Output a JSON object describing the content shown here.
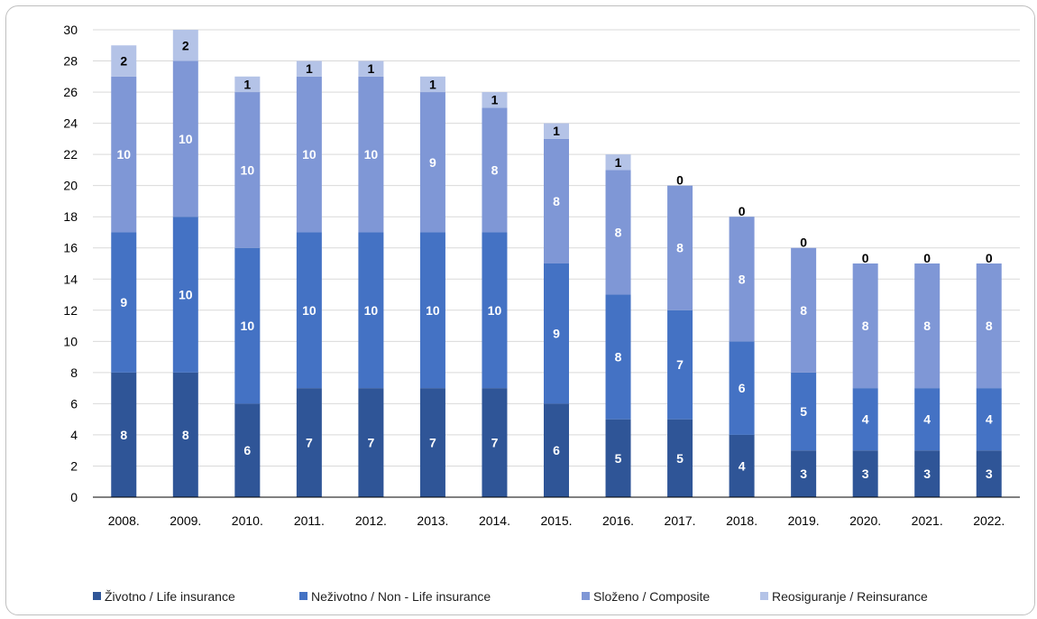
{
  "chart_data": {
    "type": "bar",
    "stacked": true,
    "categories": [
      "2008.",
      "2009.",
      "2010.",
      "2011.",
      "2012.",
      "2013.",
      "2014.",
      "2015.",
      "2016.",
      "2017.",
      "2018.",
      "2019.",
      "2020.",
      "2021.",
      "2022."
    ],
    "series": [
      {
        "name": "Životno / Life insurance",
        "color": "#2f5597",
        "label_color": "#ffffff",
        "values": [
          8,
          8,
          6,
          7,
          7,
          7,
          7,
          6,
          5,
          5,
          4,
          3,
          3,
          3,
          3
        ]
      },
      {
        "name": "Neživotno / Non - Life insurance",
        "color": "#4472c4",
        "label_color": "#ffffff",
        "values": [
          9,
          10,
          10,
          10,
          10,
          10,
          10,
          9,
          8,
          7,
          6,
          5,
          4,
          4,
          4
        ]
      },
      {
        "name": "Složeno / Composite",
        "color": "#7f97d6",
        "label_color": "#ffffff",
        "values": [
          10,
          10,
          10,
          10,
          10,
          9,
          8,
          8,
          8,
          8,
          8,
          8,
          8,
          8,
          8
        ]
      },
      {
        "name": "Reosiguranje / Reinsurance",
        "color": "#b4c3e7",
        "label_color": "#000000",
        "values": [
          2,
          2,
          1,
          1,
          1,
          1,
          1,
          1,
          1,
          0,
          0,
          0,
          0,
          0,
          0
        ]
      }
    ],
    "y_ticks": [
      "0",
      "2",
      "4",
      "6",
      "8",
      "10",
      "12",
      "14",
      "16",
      "18",
      "20",
      "22",
      "24",
      "26",
      "28",
      "30"
    ],
    "ylim": [
      0,
      30
    ],
    "grid": true,
    "legend_position": "bottom",
    "title": "",
    "xlabel": "",
    "ylabel": ""
  }
}
